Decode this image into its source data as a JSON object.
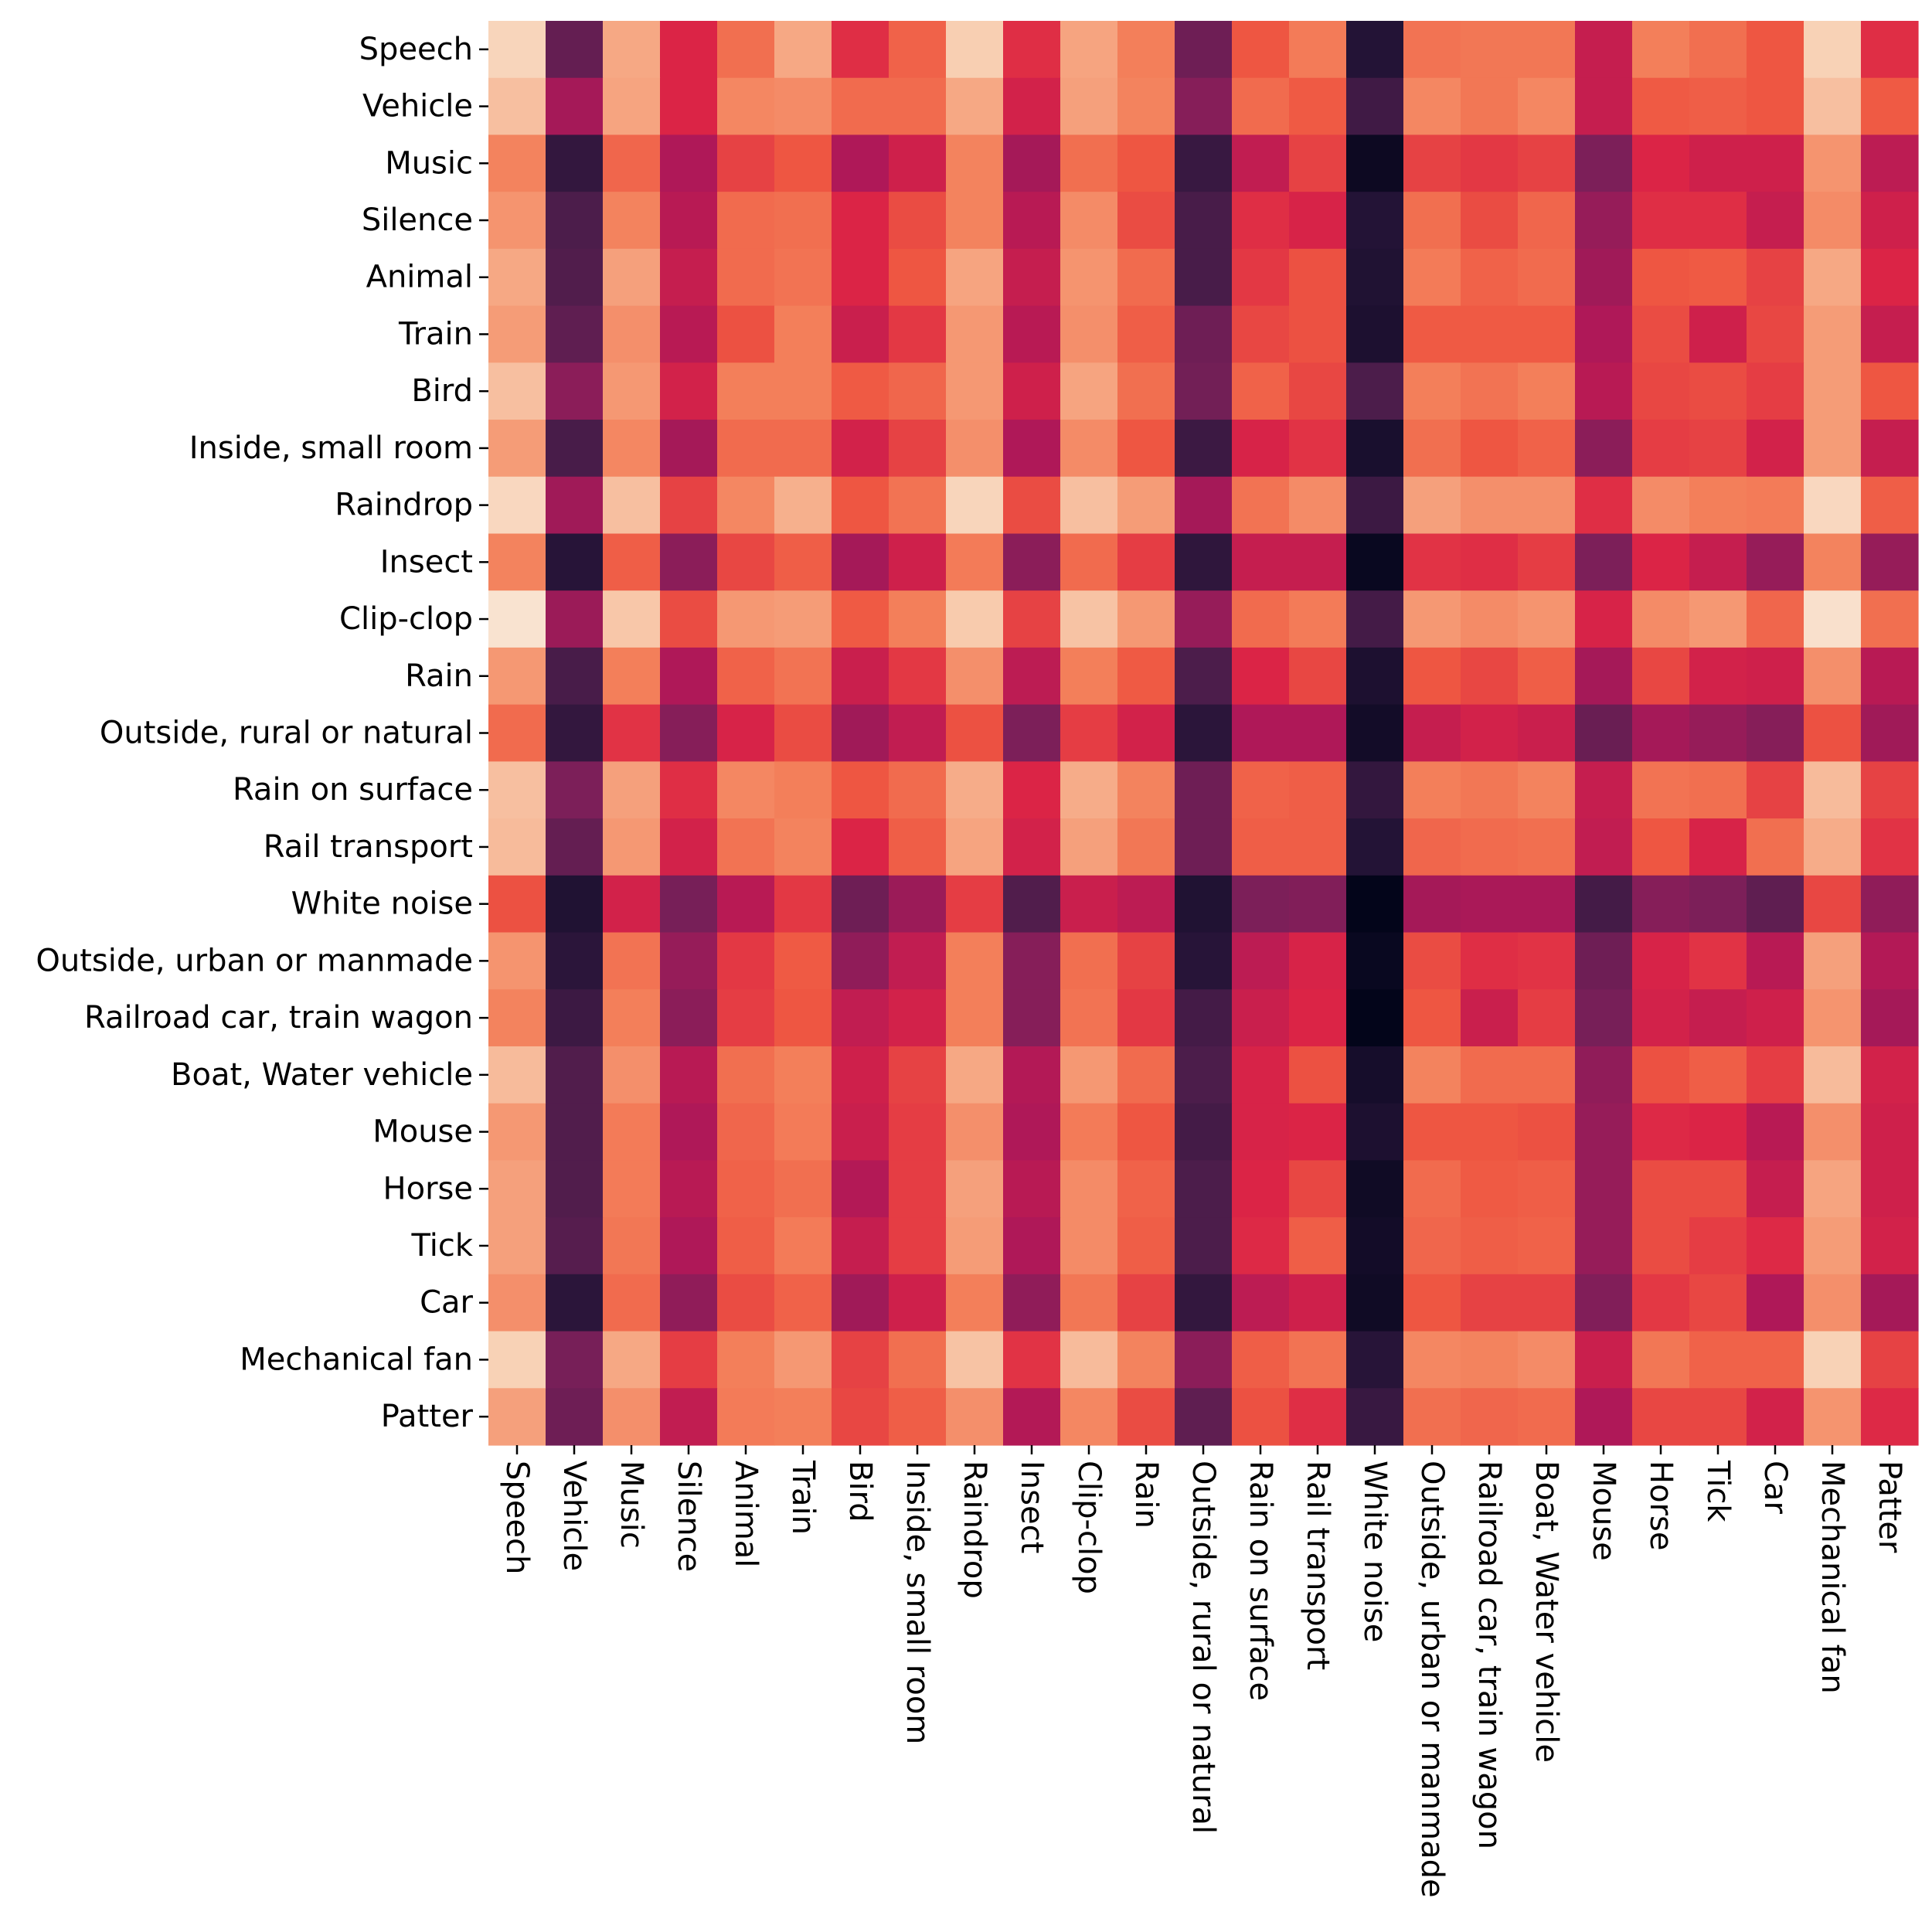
{
  "chart_data": {
    "type": "heatmap",
    "title": "",
    "xlabel": "",
    "ylabel": "",
    "colormap": "rocket",
    "value_scale": "0 (darkest) to 1 (lightest), relative",
    "colorbar": false,
    "grid": false,
    "rows": [
      "Speech",
      "Vehicle",
      "Music",
      "Silence",
      "Animal",
      "Train",
      "Bird",
      "Inside, small room",
      "Raindrop",
      "Insect",
      "Clip-clop",
      "Rain",
      "Outside, rural or natural",
      "Rain on surface",
      "Rail transport",
      "White noise",
      "Outside, urban or manmade",
      "Railroad car, train wagon",
      "Boat, Water vehicle",
      "Mouse",
      "Horse",
      "Tick",
      "Car",
      "Mechanical fan",
      "Patter"
    ],
    "columns": [
      "Speech",
      "Vehicle",
      "Music",
      "Silence",
      "Animal",
      "Train",
      "Bird",
      "Inside, small room",
      "Raindrop",
      "Insect",
      "Clip-clop",
      "Rain",
      "Outside, rural or natural",
      "Rain on surface",
      "Rail transport",
      "White noise",
      "Outside, urban or manmade",
      "Railroad car, train wagon",
      "Boat, Water vehicle",
      "Mouse",
      "Horse",
      "Tick",
      "Car",
      "Mechanical fan",
      "Patter"
    ],
    "values": [
      [
        0.92,
        0.25,
        0.8,
        0.5,
        0.66,
        0.8,
        0.52,
        0.63,
        0.9,
        0.52,
        0.79,
        0.7,
        0.27,
        0.6,
        0.69,
        0.1,
        0.67,
        0.68,
        0.68,
        0.45,
        0.7,
        0.66,
        0.6,
        0.91,
        0.52
      ],
      [
        0.86,
        0.38,
        0.79,
        0.5,
        0.72,
        0.73,
        0.65,
        0.65,
        0.8,
        0.48,
        0.78,
        0.71,
        0.32,
        0.65,
        0.61,
        0.17,
        0.72,
        0.68,
        0.72,
        0.45,
        0.61,
        0.62,
        0.6,
        0.86,
        0.61
      ],
      [
        0.71,
        0.14,
        0.64,
        0.4,
        0.56,
        0.6,
        0.4,
        0.47,
        0.71,
        0.38,
        0.66,
        0.6,
        0.15,
        0.44,
        0.56,
        0.03,
        0.56,
        0.54,
        0.56,
        0.3,
        0.5,
        0.47,
        0.47,
        0.75,
        0.43
      ],
      [
        0.75,
        0.2,
        0.71,
        0.42,
        0.65,
        0.66,
        0.5,
        0.58,
        0.71,
        0.42,
        0.73,
        0.58,
        0.19,
        0.52,
        0.49,
        0.1,
        0.66,
        0.58,
        0.64,
        0.35,
        0.52,
        0.52,
        0.45,
        0.73,
        0.47
      ],
      [
        0.8,
        0.21,
        0.78,
        0.45,
        0.65,
        0.67,
        0.5,
        0.6,
        0.79,
        0.45,
        0.75,
        0.65,
        0.19,
        0.54,
        0.59,
        0.09,
        0.69,
        0.63,
        0.65,
        0.37,
        0.6,
        0.61,
        0.56,
        0.8,
        0.5
      ],
      [
        0.77,
        0.24,
        0.74,
        0.42,
        0.59,
        0.7,
        0.46,
        0.54,
        0.76,
        0.42,
        0.74,
        0.62,
        0.27,
        0.57,
        0.59,
        0.08,
        0.61,
        0.61,
        0.61,
        0.4,
        0.58,
        0.47,
        0.57,
        0.77,
        0.45
      ],
      [
        0.86,
        0.33,
        0.76,
        0.48,
        0.7,
        0.7,
        0.61,
        0.64,
        0.76,
        0.47,
        0.79,
        0.66,
        0.28,
        0.63,
        0.57,
        0.2,
        0.7,
        0.67,
        0.7,
        0.42,
        0.57,
        0.58,
        0.55,
        0.77,
        0.6
      ],
      [
        0.77,
        0.19,
        0.72,
        0.38,
        0.65,
        0.65,
        0.48,
        0.56,
        0.74,
        0.4,
        0.73,
        0.6,
        0.16,
        0.49,
        0.53,
        0.07,
        0.66,
        0.6,
        0.63,
        0.33,
        0.55,
        0.56,
        0.48,
        0.77,
        0.45
      ],
      [
        0.93,
        0.37,
        0.86,
        0.56,
        0.72,
        0.82,
        0.6,
        0.67,
        0.92,
        0.58,
        0.86,
        0.77,
        0.38,
        0.67,
        0.73,
        0.16,
        0.78,
        0.74,
        0.74,
        0.52,
        0.73,
        0.7,
        0.69,
        0.93,
        0.62
      ],
      [
        0.71,
        0.11,
        0.62,
        0.33,
        0.57,
        0.62,
        0.38,
        0.47,
        0.69,
        0.33,
        0.65,
        0.55,
        0.13,
        0.45,
        0.45,
        0.02,
        0.53,
        0.52,
        0.55,
        0.3,
        0.5,
        0.45,
        0.35,
        0.71,
        0.35
      ],
      [
        0.97,
        0.36,
        0.88,
        0.58,
        0.76,
        0.77,
        0.61,
        0.7,
        0.89,
        0.56,
        0.87,
        0.76,
        0.35,
        0.65,
        0.69,
        0.18,
        0.76,
        0.73,
        0.75,
        0.49,
        0.73,
        0.76,
        0.64,
        0.96,
        0.66
      ],
      [
        0.76,
        0.19,
        0.7,
        0.4,
        0.63,
        0.67,
        0.46,
        0.54,
        0.74,
        0.43,
        0.7,
        0.61,
        0.2,
        0.5,
        0.57,
        0.08,
        0.6,
        0.57,
        0.62,
        0.38,
        0.57,
        0.48,
        0.47,
        0.74,
        0.42
      ],
      [
        0.65,
        0.14,
        0.53,
        0.32,
        0.49,
        0.58,
        0.37,
        0.44,
        0.59,
        0.3,
        0.55,
        0.48,
        0.12,
        0.4,
        0.4,
        0.05,
        0.45,
        0.48,
        0.46,
        0.26,
        0.38,
        0.35,
        0.32,
        0.59,
        0.37
      ],
      [
        0.86,
        0.3,
        0.78,
        0.52,
        0.72,
        0.7,
        0.6,
        0.65,
        0.81,
        0.5,
        0.81,
        0.71,
        0.27,
        0.63,
        0.62,
        0.14,
        0.7,
        0.68,
        0.71,
        0.45,
        0.67,
        0.66,
        0.56,
        0.85,
        0.56
      ],
      [
        0.85,
        0.25,
        0.76,
        0.48,
        0.67,
        0.71,
        0.5,
        0.62,
        0.79,
        0.48,
        0.78,
        0.68,
        0.27,
        0.62,
        0.62,
        0.1,
        0.64,
        0.65,
        0.66,
        0.44,
        0.6,
        0.49,
        0.66,
        0.81,
        0.53
      ],
      [
        0.59,
        0.09,
        0.48,
        0.29,
        0.42,
        0.54,
        0.27,
        0.36,
        0.55,
        0.21,
        0.46,
        0.43,
        0.09,
        0.3,
        0.31,
        0.0,
        0.38,
        0.39,
        0.39,
        0.18,
        0.32,
        0.3,
        0.24,
        0.57,
        0.34
      ],
      [
        0.75,
        0.12,
        0.67,
        0.35,
        0.54,
        0.61,
        0.34,
        0.44,
        0.7,
        0.32,
        0.66,
        0.56,
        0.11,
        0.43,
        0.49,
        0.02,
        0.58,
        0.52,
        0.53,
        0.27,
        0.49,
        0.53,
        0.42,
        0.78,
        0.41
      ],
      [
        0.71,
        0.16,
        0.7,
        0.33,
        0.55,
        0.6,
        0.44,
        0.48,
        0.7,
        0.32,
        0.67,
        0.54,
        0.18,
        0.46,
        0.5,
        0.0,
        0.6,
        0.46,
        0.55,
        0.29,
        0.48,
        0.45,
        0.47,
        0.75,
        0.38
      ],
      [
        0.85,
        0.21,
        0.74,
        0.42,
        0.66,
        0.7,
        0.47,
        0.56,
        0.8,
        0.41,
        0.76,
        0.65,
        0.2,
        0.49,
        0.59,
        0.06,
        0.71,
        0.65,
        0.65,
        0.34,
        0.59,
        0.62,
        0.55,
        0.85,
        0.48
      ],
      [
        0.76,
        0.21,
        0.69,
        0.4,
        0.64,
        0.69,
        0.46,
        0.55,
        0.74,
        0.4,
        0.69,
        0.6,
        0.18,
        0.49,
        0.5,
        0.08,
        0.6,
        0.6,
        0.59,
        0.35,
        0.51,
        0.5,
        0.42,
        0.74,
        0.47
      ],
      [
        0.78,
        0.21,
        0.69,
        0.42,
        0.63,
        0.66,
        0.41,
        0.55,
        0.78,
        0.42,
        0.73,
        0.63,
        0.2,
        0.5,
        0.57,
        0.04,
        0.65,
        0.61,
        0.62,
        0.35,
        0.58,
        0.58,
        0.45,
        0.79,
        0.47
      ],
      [
        0.78,
        0.22,
        0.68,
        0.4,
        0.62,
        0.69,
        0.45,
        0.55,
        0.77,
        0.4,
        0.73,
        0.62,
        0.2,
        0.51,
        0.62,
        0.05,
        0.64,
        0.62,
        0.63,
        0.35,
        0.58,
        0.55,
        0.51,
        0.77,
        0.48
      ],
      [
        0.74,
        0.12,
        0.65,
        0.34,
        0.58,
        0.63,
        0.37,
        0.47,
        0.7,
        0.34,
        0.68,
        0.56,
        0.14,
        0.43,
        0.47,
        0.04,
        0.6,
        0.56,
        0.56,
        0.31,
        0.54,
        0.57,
        0.4,
        0.74,
        0.38
      ],
      [
        0.91,
        0.29,
        0.8,
        0.55,
        0.7,
        0.76,
        0.56,
        0.66,
        0.87,
        0.53,
        0.85,
        0.71,
        0.33,
        0.62,
        0.67,
        0.11,
        0.72,
        0.71,
        0.73,
        0.46,
        0.68,
        0.63,
        0.63,
        0.91,
        0.56
      ],
      [
        0.78,
        0.27,
        0.74,
        0.44,
        0.69,
        0.7,
        0.57,
        0.62,
        0.74,
        0.41,
        0.72,
        0.58,
        0.24,
        0.59,
        0.52,
        0.15,
        0.66,
        0.64,
        0.65,
        0.4,
        0.57,
        0.57,
        0.48,
        0.75,
        0.51
      ]
    ]
  }
}
